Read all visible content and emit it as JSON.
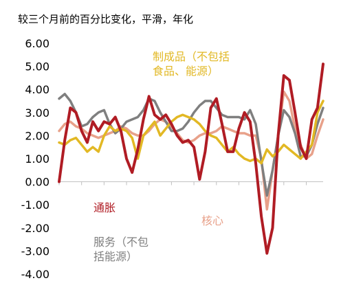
{
  "chart_data": {
    "type": "line",
    "title": "",
    "subtitle": "较三个月前的百分比变化，平滑，年化",
    "ylim": [
      -4,
      6
    ],
    "yticks": [
      "6.00",
      "5.00",
      "4.00",
      "3.00",
      "2.00",
      "1.00",
      "0.00",
      "-1.00",
      "-2.00",
      "-3.00",
      "-4.00"
    ],
    "x_count": 48,
    "grid": false,
    "series": [
      {
        "name": "通胀",
        "label_lines": [
          "通胀"
        ],
        "color": "#b01c24",
        "values": [
          0.0,
          1.8,
          3.2,
          3.0,
          2.2,
          1.7,
          2.6,
          2.2,
          2.6,
          2.5,
          2.8,
          2.2,
          1.0,
          0.4,
          1.4,
          2.7,
          3.7,
          2.9,
          2.7,
          2.9,
          2.5,
          2.0,
          1.7,
          1.8,
          1.5,
          0.1,
          1.3,
          3.2,
          3.6,
          2.5,
          1.3,
          1.3,
          2.3,
          3.0,
          2.6,
          0.8,
          -1.5,
          -3.1,
          -2.0,
          2.0,
          4.6,
          4.4,
          3.0,
          1.5,
          1.0,
          2.7,
          3.2,
          5.1
        ]
      },
      {
        "name": "核心",
        "label_lines": [
          "核心"
        ],
        "color": "#e8a18a",
        "values": [
          2.2,
          2.5,
          2.6,
          2.4,
          2.3,
          2.1,
          2.0,
          1.9,
          2.0,
          2.1,
          2.2,
          2.4,
          2.3,
          2.1,
          2.0,
          2.0,
          2.2,
          2.5,
          2.7,
          2.6,
          2.4,
          2.1,
          1.8,
          1.7,
          1.8,
          2.0,
          2.1,
          2.1,
          2.2,
          2.4,
          2.3,
          2.2,
          2.1,
          2.1,
          2.0,
          2.0,
          1.0,
          -1.2,
          0.5,
          2.0,
          3.9,
          3.5,
          2.3,
          1.6,
          1.0,
          1.2,
          2.0,
          2.7
        ]
      },
      {
        "name": "服务（不包括能源）",
        "label_lines": [
          "服务（不包",
          "括能源）"
        ],
        "color": "#7f7f7f",
        "values": [
          3.6,
          3.8,
          3.5,
          3.0,
          2.4,
          2.5,
          2.8,
          3.0,
          3.1,
          2.5,
          2.1,
          2.3,
          2.6,
          2.7,
          2.8,
          3.1,
          3.6,
          3.5,
          3.0,
          2.6,
          2.2,
          2.2,
          2.3,
          2.6,
          3.0,
          3.3,
          3.5,
          3.5,
          3.2,
          2.9,
          2.8,
          2.8,
          2.8,
          2.7,
          3.1,
          2.5,
          0.9,
          -0.6,
          0.5,
          2.0,
          3.1,
          2.8,
          2.1,
          1.1,
          1.1,
          1.6,
          2.5,
          3.2
        ]
      },
      {
        "name": "制成品（不包括食品、能源）",
        "label_lines": [
          "制成品（不包括",
          "食品、能源）"
        ],
        "color": "#e2b824",
        "values": [
          1.7,
          1.6,
          1.8,
          1.9,
          1.6,
          1.3,
          1.5,
          1.3,
          2.0,
          2.4,
          2.2,
          2.3,
          2.2,
          1.9,
          1.0,
          2.0,
          2.3,
          2.6,
          2.0,
          2.3,
          2.6,
          2.8,
          2.9,
          2.8,
          2.7,
          2.5,
          2.2,
          2.0,
          1.9,
          1.6,
          1.3,
          1.5,
          1.2,
          1.0,
          0.9,
          1.0,
          0.8,
          1.4,
          1.1,
          1.3,
          1.6,
          1.4,
          1.2,
          1.0,
          1.3,
          1.6,
          3.0,
          3.5
        ]
      }
    ]
  }
}
